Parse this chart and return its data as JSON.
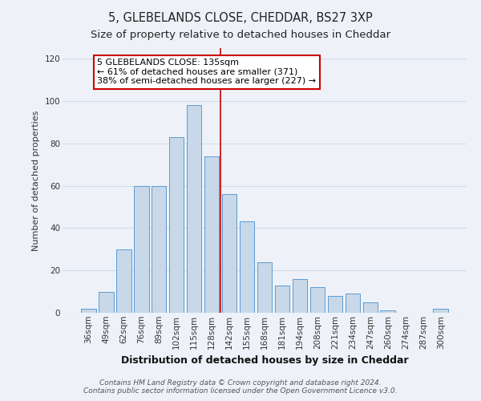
{
  "title1": "5, GLEBELANDS CLOSE, CHEDDAR, BS27 3XP",
  "title2": "Size of property relative to detached houses in Cheddar",
  "xlabel": "Distribution of detached houses by size in Cheddar",
  "ylabel": "Number of detached properties",
  "bar_labels": [
    "36sqm",
    "49sqm",
    "62sqm",
    "76sqm",
    "89sqm",
    "102sqm",
    "115sqm",
    "128sqm",
    "142sqm",
    "155sqm",
    "168sqm",
    "181sqm",
    "194sqm",
    "208sqm",
    "221sqm",
    "234sqm",
    "247sqm",
    "260sqm",
    "274sqm",
    "287sqm",
    "300sqm"
  ],
  "bar_values": [
    2,
    10,
    30,
    60,
    60,
    83,
    98,
    74,
    56,
    43,
    24,
    13,
    16,
    12,
    8,
    9,
    5,
    1,
    0,
    0,
    2
  ],
  "bar_color": "#c8d8e8",
  "bar_edge_color": "#5b9bd5",
  "grid_color": "#d0dce8",
  "background_color": "#eef2f8",
  "vline_x_index": 7.5,
  "vline_color": "#cc0000",
  "annotation_line1": "5 GLEBELANDS CLOSE: 135sqm",
  "annotation_line2": "← 61% of detached houses are smaller (371)",
  "annotation_line3": "38% of semi-detached houses are larger (227) →",
  "annotation_box_edgecolor": "#cc0000",
  "annotation_box_facecolor": "#ffffff",
  "ylim": [
    0,
    125
  ],
  "yticks": [
    0,
    20,
    40,
    60,
    80,
    100,
    120
  ],
  "footer_line1": "Contains HM Land Registry data © Crown copyright and database right 2024.",
  "footer_line2": "Contains public sector information licensed under the Open Government Licence v3.0.",
  "title1_fontsize": 10.5,
  "title2_fontsize": 9.5,
  "xlabel_fontsize": 9,
  "ylabel_fontsize": 8,
  "tick_fontsize": 7.5,
  "annot_fontsize": 8,
  "footer_fontsize": 6.5
}
